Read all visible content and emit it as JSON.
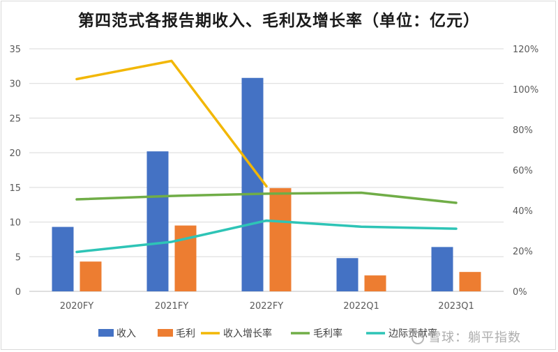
{
  "title": "第四范式各报告期收入、毛利及增长率（单位：亿元）",
  "watermark": "雪球：躺平指数",
  "chart_data": {
    "type": "bar",
    "categories": [
      "2020FY",
      "2021FY",
      "2022FY",
      "2022Q1",
      "2023Q1"
    ],
    "series": [
      {
        "name": "收入",
        "type": "bar",
        "axis": "left",
        "color": "#4472C4",
        "values": [
          9.3,
          20.2,
          30.8,
          4.8,
          6.4
        ]
      },
      {
        "name": "毛利",
        "type": "bar",
        "axis": "left",
        "color": "#ED7D31",
        "values": [
          4.3,
          9.5,
          14.9,
          2.3,
          2.8
        ]
      },
      {
        "name": "收入增长率",
        "type": "line",
        "axis": "right",
        "color": "#F2B705",
        "values": [
          1.05,
          1.14,
          0.52,
          null,
          null
        ]
      },
      {
        "name": "毛利率",
        "type": "line",
        "axis": "right",
        "color": "#70AD47",
        "values": [
          0.455,
          0.472,
          0.483,
          0.488,
          0.438
        ]
      },
      {
        "name": "边际贡献率",
        "type": "line",
        "axis": "right",
        "color": "#2EC4B6",
        "values": [
          0.195,
          0.245,
          0.35,
          0.32,
          0.31
        ]
      }
    ],
    "y_left": {
      "min": 0,
      "max": 35,
      "ticks": [
        "0",
        "5",
        "10",
        "15",
        "20",
        "25",
        "30",
        "35"
      ]
    },
    "y_right": {
      "min": 0,
      "max": 1.2,
      "ticks": [
        "0%",
        "20%",
        "40%",
        "60%",
        "80%",
        "100%",
        "120%"
      ]
    },
    "grid": true,
    "legend_position": "bottom"
  }
}
